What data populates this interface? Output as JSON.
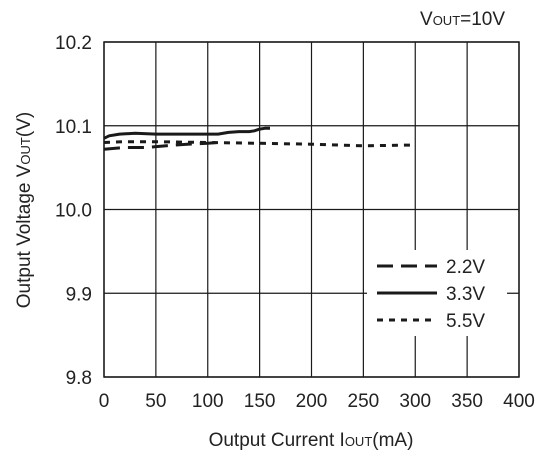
{
  "chart_data": {
    "type": "line",
    "annotation": {
      "prefix": "V",
      "sub": "OUT",
      "suffix": "=10V"
    },
    "xlabel": {
      "prefix": "Output Current I",
      "sub": "OUT",
      "suffix": "(mA)"
    },
    "ylabel": {
      "prefix": "Output Voltage V",
      "sub": "OUT",
      "suffix": "(V)"
    },
    "xlim": [
      0,
      400
    ],
    "ylim": [
      9.8,
      10.2
    ],
    "xticks": [
      "0",
      "50",
      "100",
      "150",
      "200",
      "250",
      "300",
      "350",
      "400"
    ],
    "yticks": [
      "9.8",
      "9.9",
      "10.0",
      "10.1",
      "10.2"
    ],
    "grid": true,
    "legend_position": "bottom-right",
    "series": [
      {
        "name": "2.2V",
        "style": "dashed",
        "color": "#1a1a1a",
        "x": [
          0,
          20,
          40,
          60,
          80,
          100,
          110
        ],
        "y": [
          10.072,
          10.074,
          10.074,
          10.076,
          10.078,
          10.079,
          10.08
        ]
      },
      {
        "name": "3.3V",
        "style": "solid",
        "color": "#1a1a1a",
        "x": [
          0,
          5,
          15,
          30,
          50,
          70,
          90,
          110,
          120,
          130,
          140,
          145,
          150,
          155,
          160
        ],
        "y": [
          10.085,
          10.088,
          10.09,
          10.091,
          10.09,
          10.09,
          10.09,
          10.09,
          10.092,
          10.093,
          10.093,
          10.094,
          10.096,
          10.097,
          10.097
        ]
      },
      {
        "name": "5.5V",
        "style": "dotted",
        "color": "#1a1a1a",
        "x": [
          0,
          20,
          50,
          100,
          150,
          200,
          250,
          300
        ],
        "y": [
          10.08,
          10.081,
          10.081,
          10.08,
          10.079,
          10.078,
          10.076,
          10.077
        ]
      }
    ]
  }
}
